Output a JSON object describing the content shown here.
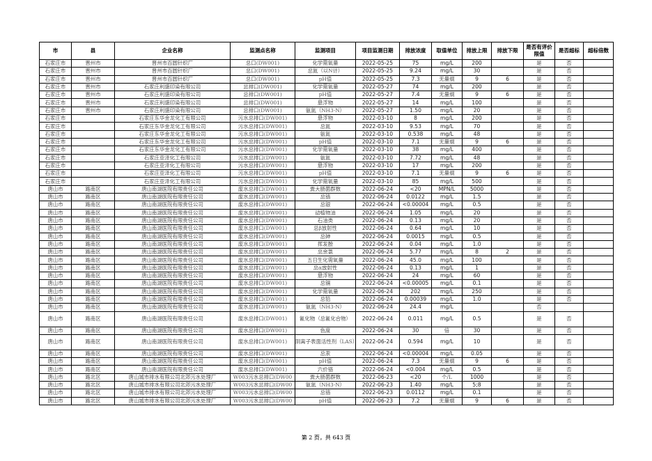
{
  "headers": [
    "市",
    "县",
    "企业名称",
    "监测点名称",
    "监测项目",
    "项目监测日期",
    "排放浓度",
    "取值单位",
    "排放上限",
    "排放下限",
    "是否有评价限值",
    "是否超标",
    "超标倍数"
  ],
  "rows": [
    [
      "石家庄市",
      "晋州市",
      "晋州市百圆针织厂",
      "总口(DW001)",
      "化学需氧量",
      "2022-05-25",
      "75",
      "mg/L",
      "200",
      "",
      "是",
      "否",
      ""
    ],
    [
      "石家庄市",
      "晋州市",
      "晋州市百圆针织厂",
      "总口(DW001)",
      "总氮（以N计）",
      "2022-05-25",
      "9.24",
      "mg/L",
      "30",
      "",
      "是",
      "否",
      ""
    ],
    [
      "石家庄市",
      "晋州市",
      "晋州市百圆针织厂",
      "总口(DW001)",
      "pH值",
      "2022-05-25",
      "7.3",
      "无量纲",
      "9",
      "6",
      "是",
      "否",
      ""
    ],
    [
      "石家庄市",
      "晋州市",
      "石家庄利盛印染有限公司",
      "总排口(DW001)",
      "化学需氧量",
      "2022-05-27",
      "74",
      "mg/L",
      "200",
      "",
      "是",
      "否",
      ""
    ],
    [
      "石家庄市",
      "晋州市",
      "石家庄利盛印染有限公司",
      "总排口(DW001)",
      "pH值",
      "2022-05-27",
      "7.4",
      "无量纲",
      "9",
      "6",
      "是",
      "否",
      ""
    ],
    [
      "石家庄市",
      "晋州市",
      "石家庄利盛印染有限公司",
      "总排口(DW001)",
      "悬浮物",
      "2022-05-27",
      "14",
      "mg/L",
      "100",
      "",
      "是",
      "否",
      ""
    ],
    [
      "石家庄市",
      "晋州市",
      "石家庄利盛印染有限公司",
      "总排口(DW001)",
      "氨氮（NH3-N）",
      "2022-05-27",
      "1.50",
      "mg/L",
      "20",
      "",
      "是",
      "否",
      ""
    ],
    [
      "石家庄市",
      "",
      "石家庄东华金龙化工有限公司",
      "污水总排口(DW001)",
      "悬浮物",
      "2022-03-10",
      "8",
      "mg/L",
      "200",
      "",
      "是",
      "否",
      ""
    ],
    [
      "石家庄市",
      "",
      "石家庄东华金龙化工有限公司",
      "污水总排口(DW001)",
      "总氮",
      "2022-03-10",
      "9.53",
      "mg/L",
      "70",
      "",
      "是",
      "否",
      ""
    ],
    [
      "石家庄市",
      "",
      "石家庄东华金龙化工有限公司",
      "污水总排口(DW001)",
      "氨氮",
      "2022-03-10",
      "0.538",
      "mg/L",
      "48",
      "",
      "是",
      "否",
      ""
    ],
    [
      "石家庄市",
      "",
      "石家庄东华金龙化工有限公司",
      "污水总排口(DW001)",
      "pH值",
      "2022-03-10",
      "7.1",
      "无量纲",
      "9",
      "6",
      "是",
      "否",
      ""
    ],
    [
      "石家庄市",
      "",
      "石家庄东华金龙化工有限公司",
      "污水总排口(DW001)",
      "化学需氧量",
      "2022-03-10",
      "38",
      "mg/L",
      "400",
      "",
      "是",
      "否",
      ""
    ],
    [
      "石家庄市",
      "",
      "石家庄亚泽化工有限公司",
      "污水总排口(DW001)",
      "氨氮",
      "2022-03-10",
      "7.72",
      "mg/L",
      "48",
      "",
      "是",
      "否",
      ""
    ],
    [
      "石家庄市",
      "",
      "石家庄亚泽化工有限公司",
      "污水总排口(DW001)",
      "悬浮物",
      "2022-03-10",
      "17",
      "mg/L",
      "200",
      "",
      "是",
      "否",
      ""
    ],
    [
      "石家庄市",
      "",
      "石家庄亚泽化工有限公司",
      "污水总排口(DW001)",
      "pH值",
      "2022-03-10",
      "7.1",
      "无量纲",
      "9",
      "6",
      "是",
      "否",
      ""
    ],
    [
      "石家庄市",
      "",
      "石家庄亚泽化工有限公司",
      "污水总排口(DW001)",
      "化学需氧量",
      "2022-03-10",
      "85",
      "mg/L",
      "500",
      "",
      "是",
      "否",
      ""
    ],
    [
      "唐山市",
      "路南区",
      "唐山南湖医院有限责任公司",
      "废水总排口(DW001)",
      "粪大肠菌群数",
      "2022-06-24",
      "<20",
      "MPN/L",
      "5000",
      "",
      "是",
      "否",
      ""
    ],
    [
      "唐山市",
      "路南区",
      "唐山南湖医院有限责任公司",
      "废水总排口(DW001)",
      "总铬",
      "2022-06-24",
      "0.0122",
      "mg/L",
      "1.5",
      "",
      "是",
      "否",
      ""
    ],
    [
      "唐山市",
      "路南区",
      "唐山南湖医院有限责任公司",
      "废水总排口(DW001)",
      "总银",
      "2022-06-24",
      "<0.00004",
      "mg/L",
      "0.5",
      "",
      "是",
      "否",
      ""
    ],
    [
      "唐山市",
      "路南区",
      "唐山南湖医院有限责任公司",
      "废水总排口(DW001)",
      "动植物油",
      "2022-06-24",
      "1.05",
      "mg/L",
      "20",
      "",
      "是",
      "否",
      ""
    ],
    [
      "唐山市",
      "路南区",
      "唐山南湖医院有限责任公司",
      "废水总排口(DW001)",
      "石油类",
      "2022-06-24",
      "0.13",
      "mg/L",
      "20",
      "",
      "是",
      "否",
      ""
    ],
    [
      "唐山市",
      "路南区",
      "唐山南湖医院有限责任公司",
      "废水总排口(DW001)",
      "总β放射性",
      "2022-06-24",
      "0.64",
      "mg/L",
      "10",
      "",
      "是",
      "否",
      ""
    ],
    [
      "唐山市",
      "路南区",
      "唐山南湖医院有限责任公司",
      "废水总排口(DW001)",
      "总砷",
      "2022-06-24",
      "0.0015",
      "mg/L",
      "0.5",
      "",
      "是",
      "否",
      ""
    ],
    [
      "唐山市",
      "路南区",
      "唐山南湖医院有限责任公司",
      "废水总排口(DW001)",
      "挥发酚",
      "2022-06-24",
      "0.04",
      "mg/L",
      "1.0",
      "",
      "是",
      "否",
      ""
    ],
    [
      "唐山市",
      "路南区",
      "唐山南湖医院有限责任公司",
      "废水总排口(DW001)",
      "总余氯",
      "2022-06-24",
      "5.77",
      "mg/L",
      "8",
      "2",
      "是",
      "否",
      ""
    ],
    [
      "唐山市",
      "路南区",
      "唐山南湖医院有限责任公司",
      "废水总排口(DW001)",
      "五日生化需氧量",
      "2022-06-24",
      "45.0",
      "mg/L",
      "100",
      "",
      "是",
      "否",
      ""
    ],
    [
      "唐山市",
      "路南区",
      "唐山南湖医院有限责任公司",
      "废水总排口(DW001)",
      "总α放射性",
      "2022-06-24",
      "0.13",
      "mg/L",
      "1",
      "",
      "是",
      "否",
      ""
    ],
    [
      "唐山市",
      "路南区",
      "唐山南湖医院有限责任公司",
      "废水总排口(DW001)",
      "悬浮物",
      "2022-06-24",
      "24",
      "mg/L",
      "60",
      "",
      "是",
      "否",
      ""
    ],
    [
      "唐山市",
      "路南区",
      "唐山南湖医院有限责任公司",
      "废水总排口(DW001)",
      "总镉",
      "2022-06-24",
      "<0.00005",
      "mg/L",
      "0.1",
      "",
      "是",
      "否",
      ""
    ],
    [
      "唐山市",
      "路南区",
      "唐山南湖医院有限责任公司",
      "废水总排口(DW001)",
      "化学需氧量",
      "2022-06-24",
      "202",
      "mg/L",
      "250",
      "",
      "是",
      "否",
      ""
    ],
    [
      "唐山市",
      "路南区",
      "唐山南湖医院有限责任公司",
      "废水总排口(DW001)",
      "总铅",
      "2022-06-24",
      "0.00039",
      "mg/L",
      "1.0",
      "",
      "是",
      "否",
      ""
    ],
    [
      "唐山市",
      "路南区",
      "唐山南湖医院有限责任公司",
      "废水总排口(DW001)",
      "氨氮（NH3-N）",
      "2022-06-24",
      "24.4",
      "mg/L",
      "",
      "",
      "否",
      "",
      ""
    ],
    [
      "唐山市",
      "路南区",
      "唐山南湖医院有限责任公司",
      "废水总排口(DW001)",
      "氰化物（总氰化合物）",
      "2022-06-24",
      "0.011",
      "mg/L",
      "0.5",
      "",
      "是",
      "否",
      ""
    ],
    [
      "唐山市",
      "路南区",
      "唐山南湖医院有限责任公司",
      "废水总排口(DW001)",
      "色度",
      "2022-06-24",
      "30",
      "倍",
      "30",
      "",
      "是",
      "否",
      ""
    ],
    [
      "唐山市",
      "路南区",
      "唐山南湖医院有限责任公司",
      "废水总排口(DW001)",
      "阴离子表面活性剂（LAS）",
      "2022-06-24",
      "0.594",
      "mg/L",
      "10",
      "",
      "是",
      "否",
      ""
    ],
    [
      "唐山市",
      "路南区",
      "唐山南湖医院有限责任公司",
      "废水总排口(DW001)",
      "总汞",
      "2022-06-24",
      "<0.00004",
      "mg/L",
      "0.05",
      "",
      "是",
      "否",
      ""
    ],
    [
      "唐山市",
      "路南区",
      "唐山南湖医院有限责任公司",
      "废水总排口(DW001)",
      "pH值",
      "2022-06-24",
      "7.3",
      "无量纲",
      "9",
      "6",
      "是",
      "否",
      ""
    ],
    [
      "唐山市",
      "路南区",
      "唐山南湖医院有限责任公司",
      "废水总排口(DW001)",
      "六价铬",
      "2022-06-24",
      "<0.004",
      "mg/L",
      "0.5",
      "",
      "是",
      "否",
      ""
    ],
    [
      "唐山市",
      "路北区",
      "唐山城市排水有限公司北郊污水处理厂",
      "W003污水总排口(DW00",
      "粪大肠菌群数",
      "2022-06-23",
      "<20",
      "个/L",
      "1000",
      "",
      "是",
      "否",
      ""
    ],
    [
      "唐山市",
      "路北区",
      "唐山城市排水有限公司北郊污水处理厂",
      "W003污水总排口(DW00",
      "氨氮（NH3-N）",
      "2022-06-23",
      "1.40",
      "mg/L",
      "5;8",
      "",
      "是",
      "否",
      ""
    ],
    [
      "唐山市",
      "路北区",
      "唐山城市排水有限公司北郊污水处理厂",
      "W003污水总排口(DW00",
      "总铬",
      "2022-06-23",
      "0.0112",
      "mg/L",
      "0.1",
      "",
      "是",
      "否",
      ""
    ],
    [
      "唐山市",
      "路北区",
      "唐山城市排水有限公司北郊污水处理厂",
      "W003污水总排口(DW00",
      "pH值",
      "2022-06-23",
      "7.2",
      "无量纲",
      "9",
      "6",
      "是",
      "否",
      ""
    ]
  ],
  "footer": "第 2 页，共 643 页"
}
